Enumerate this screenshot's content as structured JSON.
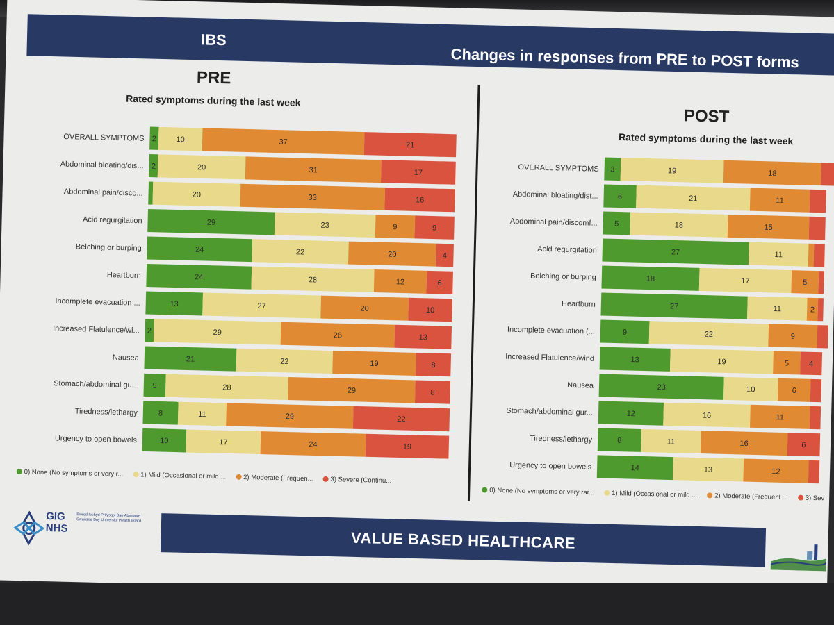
{
  "slide": {
    "topic": "IBS",
    "title": "Changes in responses from PRE to POST forms",
    "footer": "VALUE BASED HEALTHCARE",
    "logo": {
      "line1": "GIG",
      "line2": "NHS",
      "board_text": "Bwrdd Iechyd Prifysgol Bae Abertawe Swansea Bay University Health Board"
    }
  },
  "colors": {
    "none": "#4f9a2e",
    "mild": "#e9d98a",
    "moderate": "#e08a34",
    "severe": "#d9533e",
    "band": "#283a64"
  },
  "legend": [
    {
      "label": "0) None (No symptoms or very r...",
      "color_key": "none"
    },
    {
      "label": "1) Mild (Occasional or mild ...",
      "color_key": "mild"
    },
    {
      "label": "2) Moderate (Frequen...",
      "color_key": "moderate"
    },
    {
      "label": "3) Severe (Continu...",
      "color_key": "severe"
    }
  ],
  "legend_post": [
    {
      "label": "0) None (No symptoms or very rar...",
      "color_key": "none"
    },
    {
      "label": "1) Mild (Occasional or mild ...",
      "color_key": "mild"
    },
    {
      "label": "2) Moderate (Frequent ...",
      "color_key": "moderate"
    },
    {
      "label": "3) Sev",
      "color_key": "severe"
    }
  ],
  "chart_data": [
    {
      "type": "bar",
      "stacked": "horizontal",
      "panel": "PRE",
      "title": "Rated symptoms during the last week",
      "categories": [
        "OVERALL SYMPTOMS",
        "Abdominal bloating/dis...",
        "Abdominal pain/disco...",
        "Acid regurgitation",
        "Belching or burping",
        "Heartburn",
        "Incomplete evacuation ...",
        "Increased Flatulence/wi...",
        "Nausea",
        "Stomach/abdominal gu...",
        "Tiredness/lethargy",
        "Urgency to open bowels"
      ],
      "series": [
        {
          "name": "0) None (No symptoms or very r...",
          "values": [
            2,
            2,
            1,
            29,
            24,
            24,
            13,
            2,
            21,
            5,
            8,
            10
          ]
        },
        {
          "name": "1) Mild (Occasional or mild ...",
          "values": [
            10,
            20,
            20,
            23,
            22,
            28,
            27,
            29,
            22,
            28,
            11,
            17
          ]
        },
        {
          "name": "2) Moderate (Frequen...",
          "values": [
            37,
            31,
            33,
            9,
            20,
            12,
            20,
            26,
            19,
            29,
            29,
            24
          ]
        },
        {
          "name": "3) Severe (Continu...",
          "values": [
            21,
            17,
            16,
            9,
            4,
            6,
            10,
            13,
            8,
            8,
            22,
            19
          ]
        }
      ],
      "labels": [
        [
          "2",
          "10",
          "37",
          "21"
        ],
        [
          "2",
          "20",
          "31",
          "17"
        ],
        [
          "",
          "20",
          "33",
          "16"
        ],
        [
          "29",
          "23",
          "9",
          "9"
        ],
        [
          "24",
          "22",
          "20",
          "4"
        ],
        [
          "24",
          "28",
          "12",
          "6"
        ],
        [
          "13",
          "27",
          "20",
          "10"
        ],
        [
          "2",
          "29",
          "26",
          "13"
        ],
        [
          "21",
          "22",
          "19",
          "8"
        ],
        [
          "5",
          "28",
          "29",
          "8"
        ],
        [
          "8",
          "11",
          "29",
          "22"
        ],
        [
          "10",
          "17",
          "24",
          "19"
        ]
      ],
      "legend_position": "bottom"
    },
    {
      "type": "bar",
      "stacked": "horizontal",
      "panel": "POST",
      "title": "Rated symptoms during the last week",
      "categories": [
        "OVERALL SYMPTOMS",
        "Abdominal bloating/dist...",
        "Abdominal pain/discomf...",
        "Acid regurgitation",
        "Belching or burping",
        "Heartburn",
        "Incomplete evacuation (...",
        "Increased Flatulence/wind",
        "Nausea",
        "Stomach/abdominal gur...",
        "Tiredness/lethargy",
        "Urgency to open bowels"
      ],
      "series": [
        {
          "name": "0) None (No symptoms or very rar...",
          "values": [
            3,
            6,
            5,
            27,
            18,
            27,
            9,
            13,
            23,
            12,
            8,
            14
          ]
        },
        {
          "name": "1) Mild (Occasional or mild ...",
          "values": [
            19,
            21,
            18,
            11,
            17,
            11,
            22,
            19,
            10,
            16,
            11,
            13
          ]
        },
        {
          "name": "2) Moderate (Frequent ...",
          "values": [
            18,
            11,
            15,
            1,
            5,
            2,
            9,
            5,
            6,
            11,
            16,
            12
          ]
        },
        {
          "name": "3) Sev",
          "values": [
            4,
            3,
            3,
            2,
            1,
            1,
            2,
            4,
            2,
            2,
            6,
            2
          ]
        }
      ],
      "labels": [
        [
          "3",
          "19",
          "18",
          ""
        ],
        [
          "6",
          "21",
          "11",
          ""
        ],
        [
          "5",
          "18",
          "15",
          ""
        ],
        [
          "27",
          "11",
          "",
          ""
        ],
        [
          "18",
          "17",
          "5",
          ""
        ],
        [
          "27",
          "11",
          "2",
          ""
        ],
        [
          "9",
          "22",
          "9",
          ""
        ],
        [
          "13",
          "19",
          "5",
          "4"
        ],
        [
          "23",
          "10",
          "6",
          ""
        ],
        [
          "12",
          "16",
          "11",
          ""
        ],
        [
          "8",
          "11",
          "16",
          "6"
        ],
        [
          "14",
          "13",
          "12",
          ""
        ]
      ],
      "legend_position": "bottom",
      "clipped_right": true
    }
  ]
}
